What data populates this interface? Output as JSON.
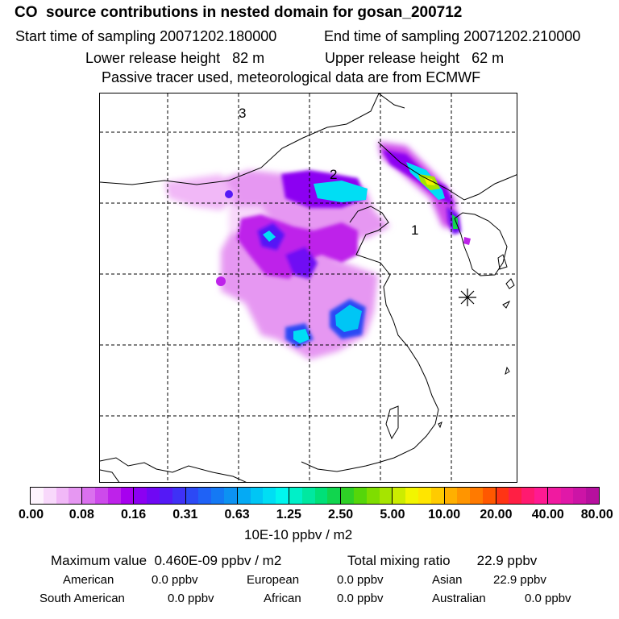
{
  "header": {
    "title": "CO  source contributions in nested domain for gosan_200712",
    "start_label": "Start time of sampling 20071202.180000",
    "end_label": "End time of sampling 20071202.210000",
    "lower_release": "Lower release height   82 m",
    "upper_release": "Upper release height   62 m",
    "tracer_info": "Passive tracer used, meteorological data are from ECMWF"
  },
  "map": {
    "region_labels": [
      "1",
      "2",
      "3"
    ],
    "receptor_marker": "asterisk-icon"
  },
  "colorbar": {
    "tick_labels": [
      "0.00",
      "0.08",
      "0.16",
      "0.31",
      "0.63",
      "1.25",
      "2.50",
      "5.00",
      "10.00",
      "20.00",
      "40.00",
      "80.00"
    ],
    "unit_label": "10E-10 ppbv / m2",
    "colors": [
      "#fdf3fd",
      "#f8d8fb",
      "#f1b8f7",
      "#e697f2",
      "#da70ee",
      "#cd4aeb",
      "#be22ea",
      "#a700ef",
      "#8c00f2",
      "#7008f4",
      "#5419f6",
      "#3f31f6",
      "#2c49f5",
      "#1f62f6",
      "#1479f4",
      "#0c92f2",
      "#05aaf4",
      "#00c6f5",
      "#00def4",
      "#00f6ef",
      "#00f0c8",
      "#00e8a0",
      "#00e078",
      "#11d54e",
      "#2ed026",
      "#55d60a",
      "#7fdd00",
      "#a6e400",
      "#ccec00",
      "#f2f500",
      "#ffe500",
      "#ffcb00",
      "#ffb000",
      "#ff9500",
      "#ff7a00",
      "#ff5800",
      "#ff3414",
      "#ff1f44",
      "#ff1a70",
      "#ff1a92",
      "#f01aa0",
      "#e018a8",
      "#cc14a6",
      "#b6109e",
      "#9c0c94",
      "#820884",
      "#680670",
      "#50045a"
    ]
  },
  "stats": {
    "maximum": "Maximum value  0.460E-09 ppbv / m2",
    "total": "Total mixing ratio       22.9 ppbv",
    "american_label": "American",
    "american_value": "0.0 ppbv",
    "european_label": "European",
    "european_value": "0.0 ppbv",
    "asian_label": "Asian",
    "asian_value": "22.9 ppbv",
    "south_american_label": "South American",
    "south_american_value": "0.0 ppbv",
    "african_label": "African",
    "african_value": "0.0 ppbv",
    "australian_label": "Australian",
    "australian_value": "0.0 ppbv"
  }
}
